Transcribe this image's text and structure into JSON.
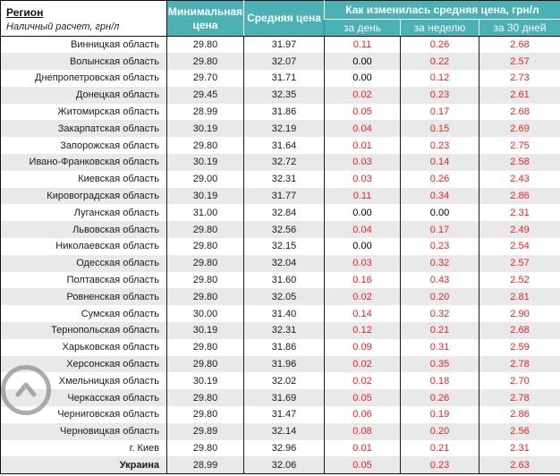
{
  "table": {
    "header": {
      "region_title": "Регион",
      "region_subtitle": "Наличный расчет, грн/л",
      "min_price": "Минимальная цена",
      "avg_price": "Средняя цена",
      "change_group": "Как изменилась средняя цена, грн/л",
      "change_day": "за день",
      "change_week": "за неделю",
      "change_month": "за 30 дней"
    },
    "colors": {
      "header_bg": "#4bb1b5",
      "alt_row_bg": "#e9e9e9",
      "positive_change": "#ee2222",
      "zero_change": "#000000"
    },
    "rows": [
      {
        "region": "Винницкая область",
        "min": "29.80",
        "avg": "31.97",
        "day": "0.11",
        "week": "0.26",
        "month": "2.68"
      },
      {
        "region": "Волынская область",
        "min": "29.80",
        "avg": "32.07",
        "day": "0.00",
        "week": "0.22",
        "month": "2.57"
      },
      {
        "region": "Днепропетровская область",
        "min": "29.70",
        "avg": "31.71",
        "day": "0.00",
        "week": "0.12",
        "month": "2.73"
      },
      {
        "region": "Донецкая область",
        "min": "29.45",
        "avg": "32.35",
        "day": "0.02",
        "week": "0.23",
        "month": "2.61"
      },
      {
        "region": "Житомирская область",
        "min": "28.99",
        "avg": "31.86",
        "day": "0.05",
        "week": "0.17",
        "month": "2.68"
      },
      {
        "region": "Закарпатская область",
        "min": "30.19",
        "avg": "32.19",
        "day": "0.04",
        "week": "0.15",
        "month": "2.69"
      },
      {
        "region": "Запорожская область",
        "min": "29.80",
        "avg": "31.64",
        "day": "0.01",
        "week": "0.23",
        "month": "2.75"
      },
      {
        "region": "Ивано-Франковская область",
        "min": "30.19",
        "avg": "32.72",
        "day": "0.03",
        "week": "0.14",
        "month": "2.58"
      },
      {
        "region": "Киевская область",
        "min": "29.00",
        "avg": "32.31",
        "day": "0.03",
        "week": "0.26",
        "month": "2.43"
      },
      {
        "region": "Кировоградская область",
        "min": "30.19",
        "avg": "31.77",
        "day": "0.11",
        "week": "0.34",
        "month": "2.86"
      },
      {
        "region": "Луганская область",
        "min": "31.00",
        "avg": "32.84",
        "day": "0.00",
        "week": "0.00",
        "month": "2.31"
      },
      {
        "region": "Львовская область",
        "min": "29.80",
        "avg": "32.56",
        "day": "0.04",
        "week": "0.17",
        "month": "2.49"
      },
      {
        "region": "Николаевская область",
        "min": "29.80",
        "avg": "32.15",
        "day": "0.00",
        "week": "0.23",
        "month": "2.54"
      },
      {
        "region": "Одесская область",
        "min": "29.80",
        "avg": "32.04",
        "day": "0.03",
        "week": "0.32",
        "month": "2.57"
      },
      {
        "region": "Полтавская область",
        "min": "29.80",
        "avg": "31.60",
        "day": "0.16",
        "week": "0.43",
        "month": "2.52"
      },
      {
        "region": "Ровненская область",
        "min": "29.80",
        "avg": "32.05",
        "day": "0.02",
        "week": "0.20",
        "month": "2.81"
      },
      {
        "region": "Сумская область",
        "min": "30.00",
        "avg": "31.40",
        "day": "0.14",
        "week": "0.32",
        "month": "2.90"
      },
      {
        "region": "Тернопольская область",
        "min": "30.19",
        "avg": "32.31",
        "day": "0.12",
        "week": "0.21",
        "month": "2.68"
      },
      {
        "region": "Харьковская область",
        "min": "29.80",
        "avg": "31.86",
        "day": "0.09",
        "week": "0.31",
        "month": "2.59"
      },
      {
        "region": "Херсонская область",
        "min": "29.80",
        "avg": "31.96",
        "day": "0.02",
        "week": "0.35",
        "month": "2.78"
      },
      {
        "region": "Хмельницкая область",
        "min": "30.19",
        "avg": "32.02",
        "day": "0.02",
        "week": "0.18",
        "month": "2.70"
      },
      {
        "region": "Черкасская область",
        "min": "29.80",
        "avg": "31.69",
        "day": "0.05",
        "week": "0.26",
        "month": "2.78"
      },
      {
        "region": "Черниговская область",
        "min": "29.80",
        "avg": "31.47",
        "day": "0.06",
        "week": "0.19",
        "month": "2.86"
      },
      {
        "region": "Черновицкая область",
        "min": "29.89",
        "avg": "32.14",
        "day": "0.08",
        "week": "0.20",
        "month": "2.56"
      },
      {
        "region": "г. Киев",
        "min": "29.80",
        "avg": "32.96",
        "day": "0.01",
        "week": "0.21",
        "month": "2.31"
      },
      {
        "region": "Украина",
        "bold": true,
        "min": "28.99",
        "avg": "32.06",
        "day": "0.05",
        "week": "0.23",
        "month": "2.63"
      }
    ]
  },
  "scroll_top": {
    "icon": "chevron-up"
  }
}
